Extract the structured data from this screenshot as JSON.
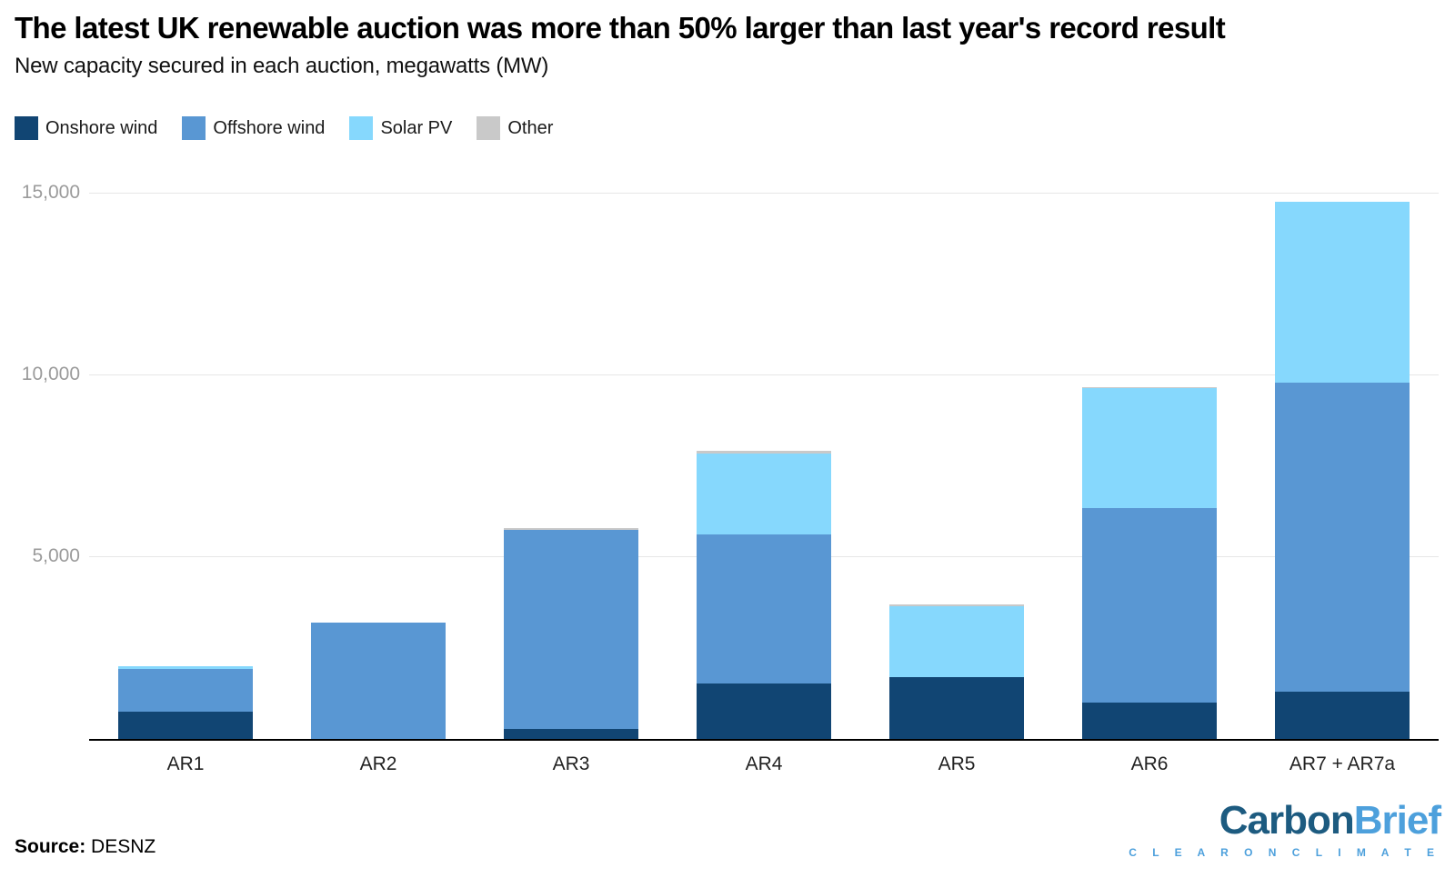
{
  "header": {
    "title": "The latest UK renewable auction was more than 50% larger than last year's record result",
    "subtitle": "New capacity secured in each auction, megawatts (MW)"
  },
  "chart_data": {
    "type": "bar",
    "stacked": true,
    "title": "The latest UK renewable auction was more than 50% larger than last year's record result",
    "subtitle": "New capacity secured in each auction, megawatts (MW)",
    "categories": [
      "AR1",
      "AR2",
      "AR3",
      "AR4",
      "AR5",
      "AR6",
      "AR7 + AR7a"
    ],
    "series": [
      {
        "name": "Onshore wind",
        "color": "#114573",
        "values": [
          749,
          0,
          275,
          1526,
          1704,
          990,
          1300
        ]
      },
      {
        "name": "Offshore wind",
        "color": "#5997d3",
        "values": [
          1162,
          3196,
          5466,
          4090,
          0,
          5340,
          8470
        ]
      },
      {
        "name": "Solar PV",
        "color": "#86d8fd",
        "values": [
          72,
          0,
          0,
          2209,
          1928,
          3293,
          4960
        ]
      },
      {
        "name": "Other",
        "color": "#c9c9c9",
        "values": [
          0,
          0,
          32,
          71,
          65,
          28,
          0
        ]
      }
    ],
    "totals": [
      1983,
      3196,
      5773,
      7896,
      3697,
      9651,
      14730
    ],
    "xlabel": "",
    "ylabel": "megawatts (MW)",
    "ylim": [
      0,
      15700
    ],
    "yticks": [
      5000,
      10000,
      15000
    ],
    "ytick_labels": [
      "5,000",
      "10,000",
      "15,000"
    ],
    "grid": true,
    "legend_position": "top"
  },
  "footer": {
    "source_label": "Source:",
    "source_value": "DESNZ",
    "logo": {
      "part1": "Carbon",
      "part2": "Brief",
      "tagline": "C L E A R   O N   C L I M A T E"
    }
  }
}
